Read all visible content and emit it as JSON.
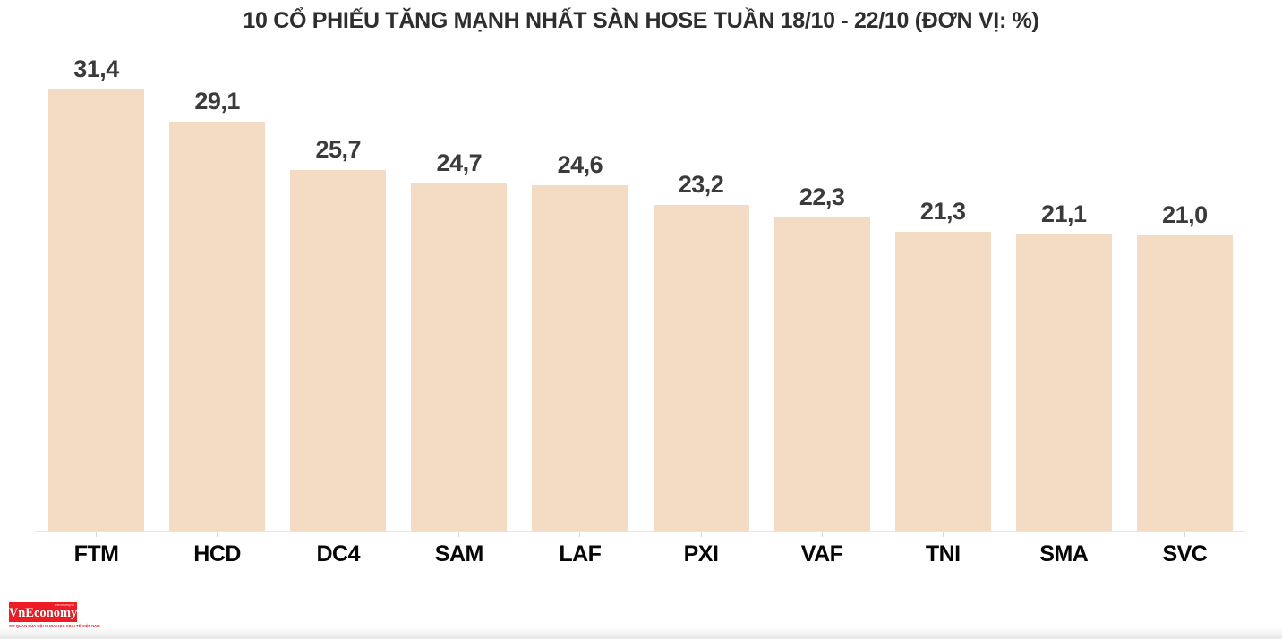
{
  "title": "10 CỔ PHIẾU TĂNG MẠNH NHẤT SÀN HOSE TUẦN 18/10 - 22/10 (ĐƠN VỊ: %)",
  "chart_data": {
    "type": "bar",
    "title": "10 CỔ PHIẾU TĂNG MẠNH NHẤT SÀN HOSE TUẦN 18/10 - 22/10 (ĐƠN VỊ: %)",
    "categories": [
      "FTM",
      "HCD",
      "DC4",
      "SAM",
      "LAF",
      "PXI",
      "VAF",
      "TNI",
      "SMA",
      "SVC"
    ],
    "values": [
      31.4,
      29.1,
      25.7,
      24.7,
      24.6,
      23.2,
      22.3,
      21.3,
      21.1,
      21.0
    ],
    "value_labels": [
      "31,4",
      "29,1",
      "25,7",
      "24,7",
      "24,6",
      "23,2",
      "22,3",
      "21,3",
      "21,1",
      "21,0"
    ],
    "unit": "%",
    "xlabel": "",
    "ylabel": "",
    "ylim": [
      0,
      34.6
    ],
    "grid": false,
    "legend": false,
    "bar_color": "#f3dbc4",
    "value_label_color": "#3b3b3b",
    "category_label_color": "#050505",
    "axis_line_color": "#e4e4e4"
  },
  "branding": {
    "logo_text": "VnEconomy",
    "logo_small_text": "vneconomy.vn",
    "tagline": "CƠ QUAN CỦA HỘI KHOA HỌC KINH TẾ VIỆT NAM",
    "logo_bg_color": "#ee1c25",
    "tagline_color": "#ee1c25"
  }
}
